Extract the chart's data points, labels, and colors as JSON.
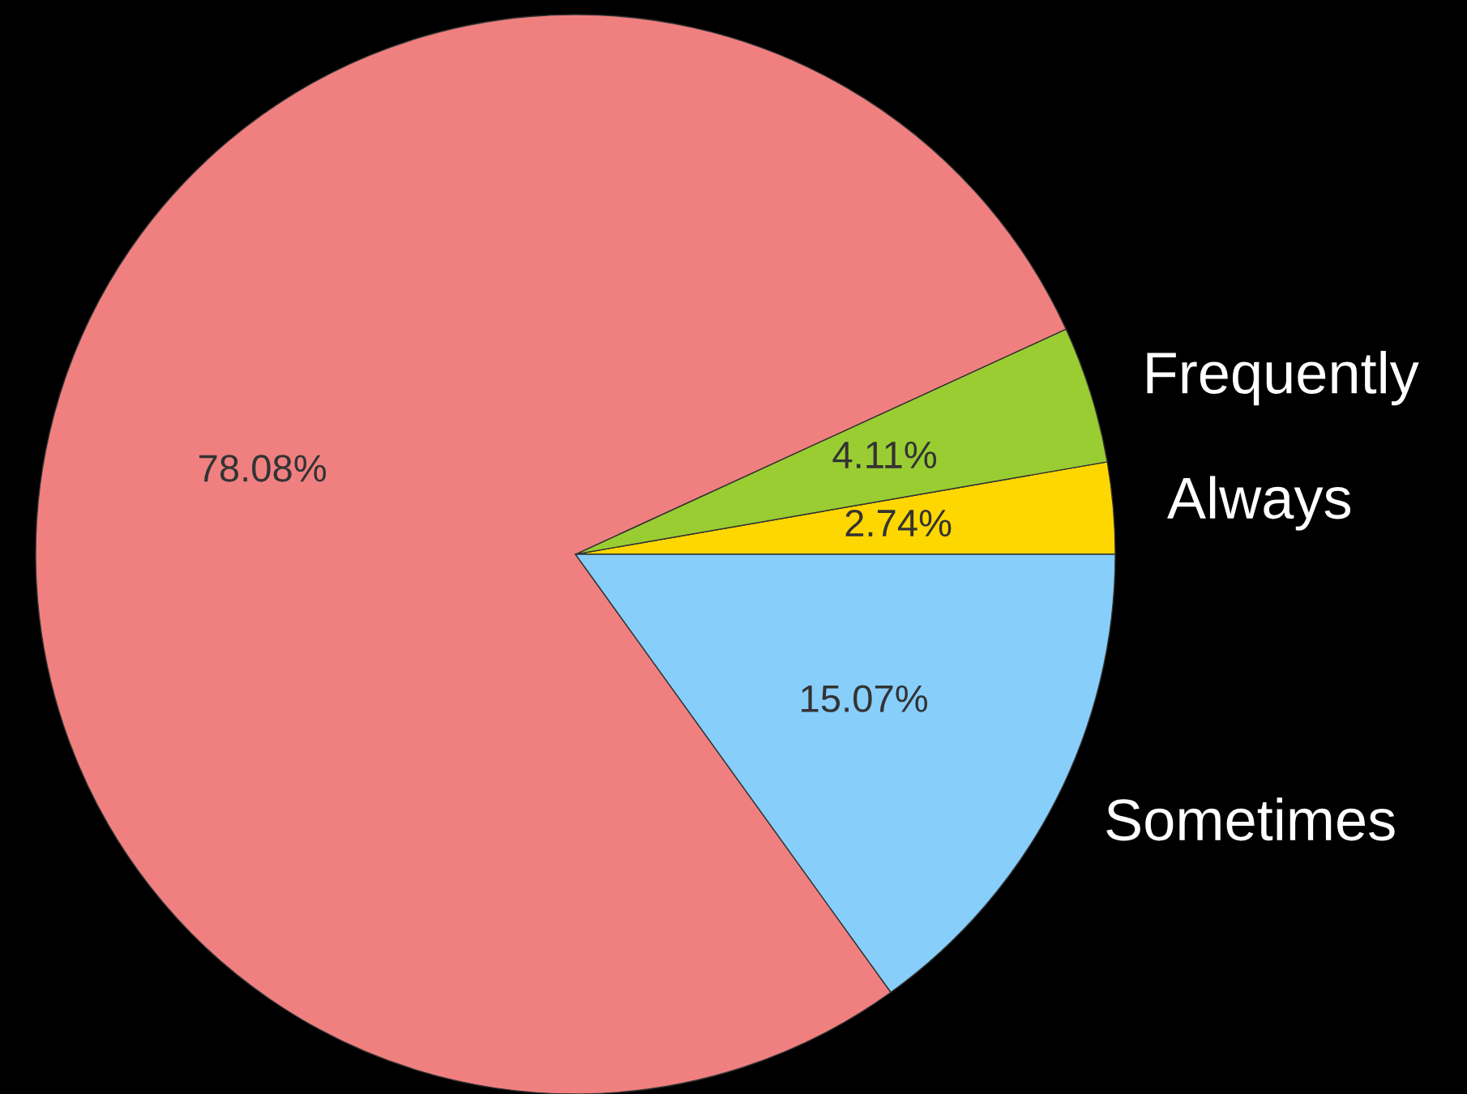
{
  "chart_data": {
    "type": "pie",
    "categories": [
      "Always",
      "Frequently",
      null,
      "Sometimes"
    ],
    "values": [
      2.74,
      4.11,
      78.08,
      15.07
    ],
    "colors": [
      "#ffd700",
      "#9acd32",
      "#f08080",
      "#87cefa"
    ],
    "value_labels": [
      "2.74%",
      "4.11%",
      "78.08%",
      "15.07%"
    ]
  }
}
